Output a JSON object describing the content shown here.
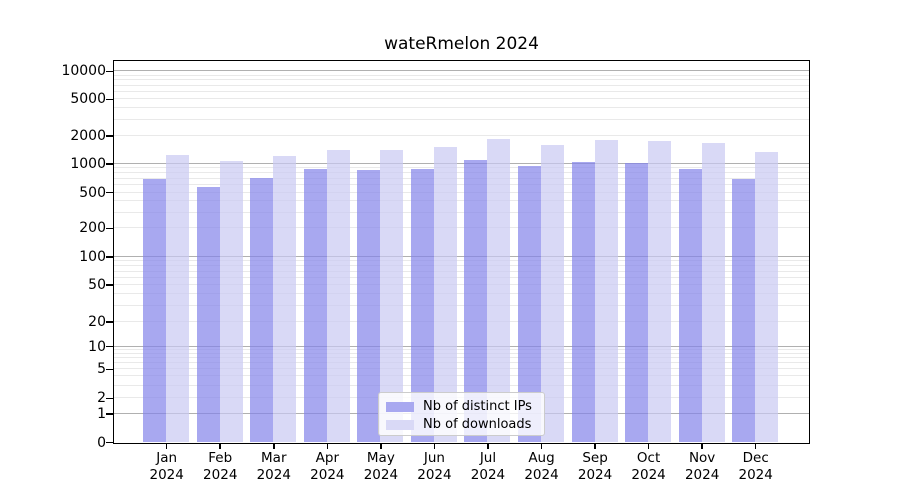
{
  "chart_data": {
    "type": "bar",
    "title": "wateRmelon 2024",
    "scale": "pseudo-log",
    "grid": true,
    "legend_position": "lower center",
    "categories": [
      "Jan",
      "Feb",
      "Mar",
      "Apr",
      "May",
      "Jun",
      "Jul",
      "Aug",
      "Sep",
      "Oct",
      "Nov",
      "Dec"
    ],
    "x_year": "2024",
    "series": [
      {
        "name": "Nb of distinct IPs",
        "color": "#a8a8f0",
        "values": [
          690,
          560,
          710,
          870,
          860,
          880,
          1100,
          940,
          1030,
          1010,
          870,
          680
        ]
      },
      {
        "name": "Nb of downloads",
        "color": "#d9d9f6",
        "values": [
          1240,
          1050,
          1190,
          1410,
          1380,
          1520,
          1840,
          1570,
          1800,
          1750,
          1670,
          1340
        ]
      }
    ],
    "yticks": [
      0,
      1,
      2,
      5,
      10,
      20,
      50,
      100,
      200,
      500,
      1000,
      2000,
      5000,
      10000
    ],
    "ylim": [
      0,
      14000
    ],
    "colors": {
      "grid_major": "#b0b0b0",
      "grid_minor": "#e9e9e9",
      "axis": "#000000",
      "background": "#ffffff"
    }
  }
}
